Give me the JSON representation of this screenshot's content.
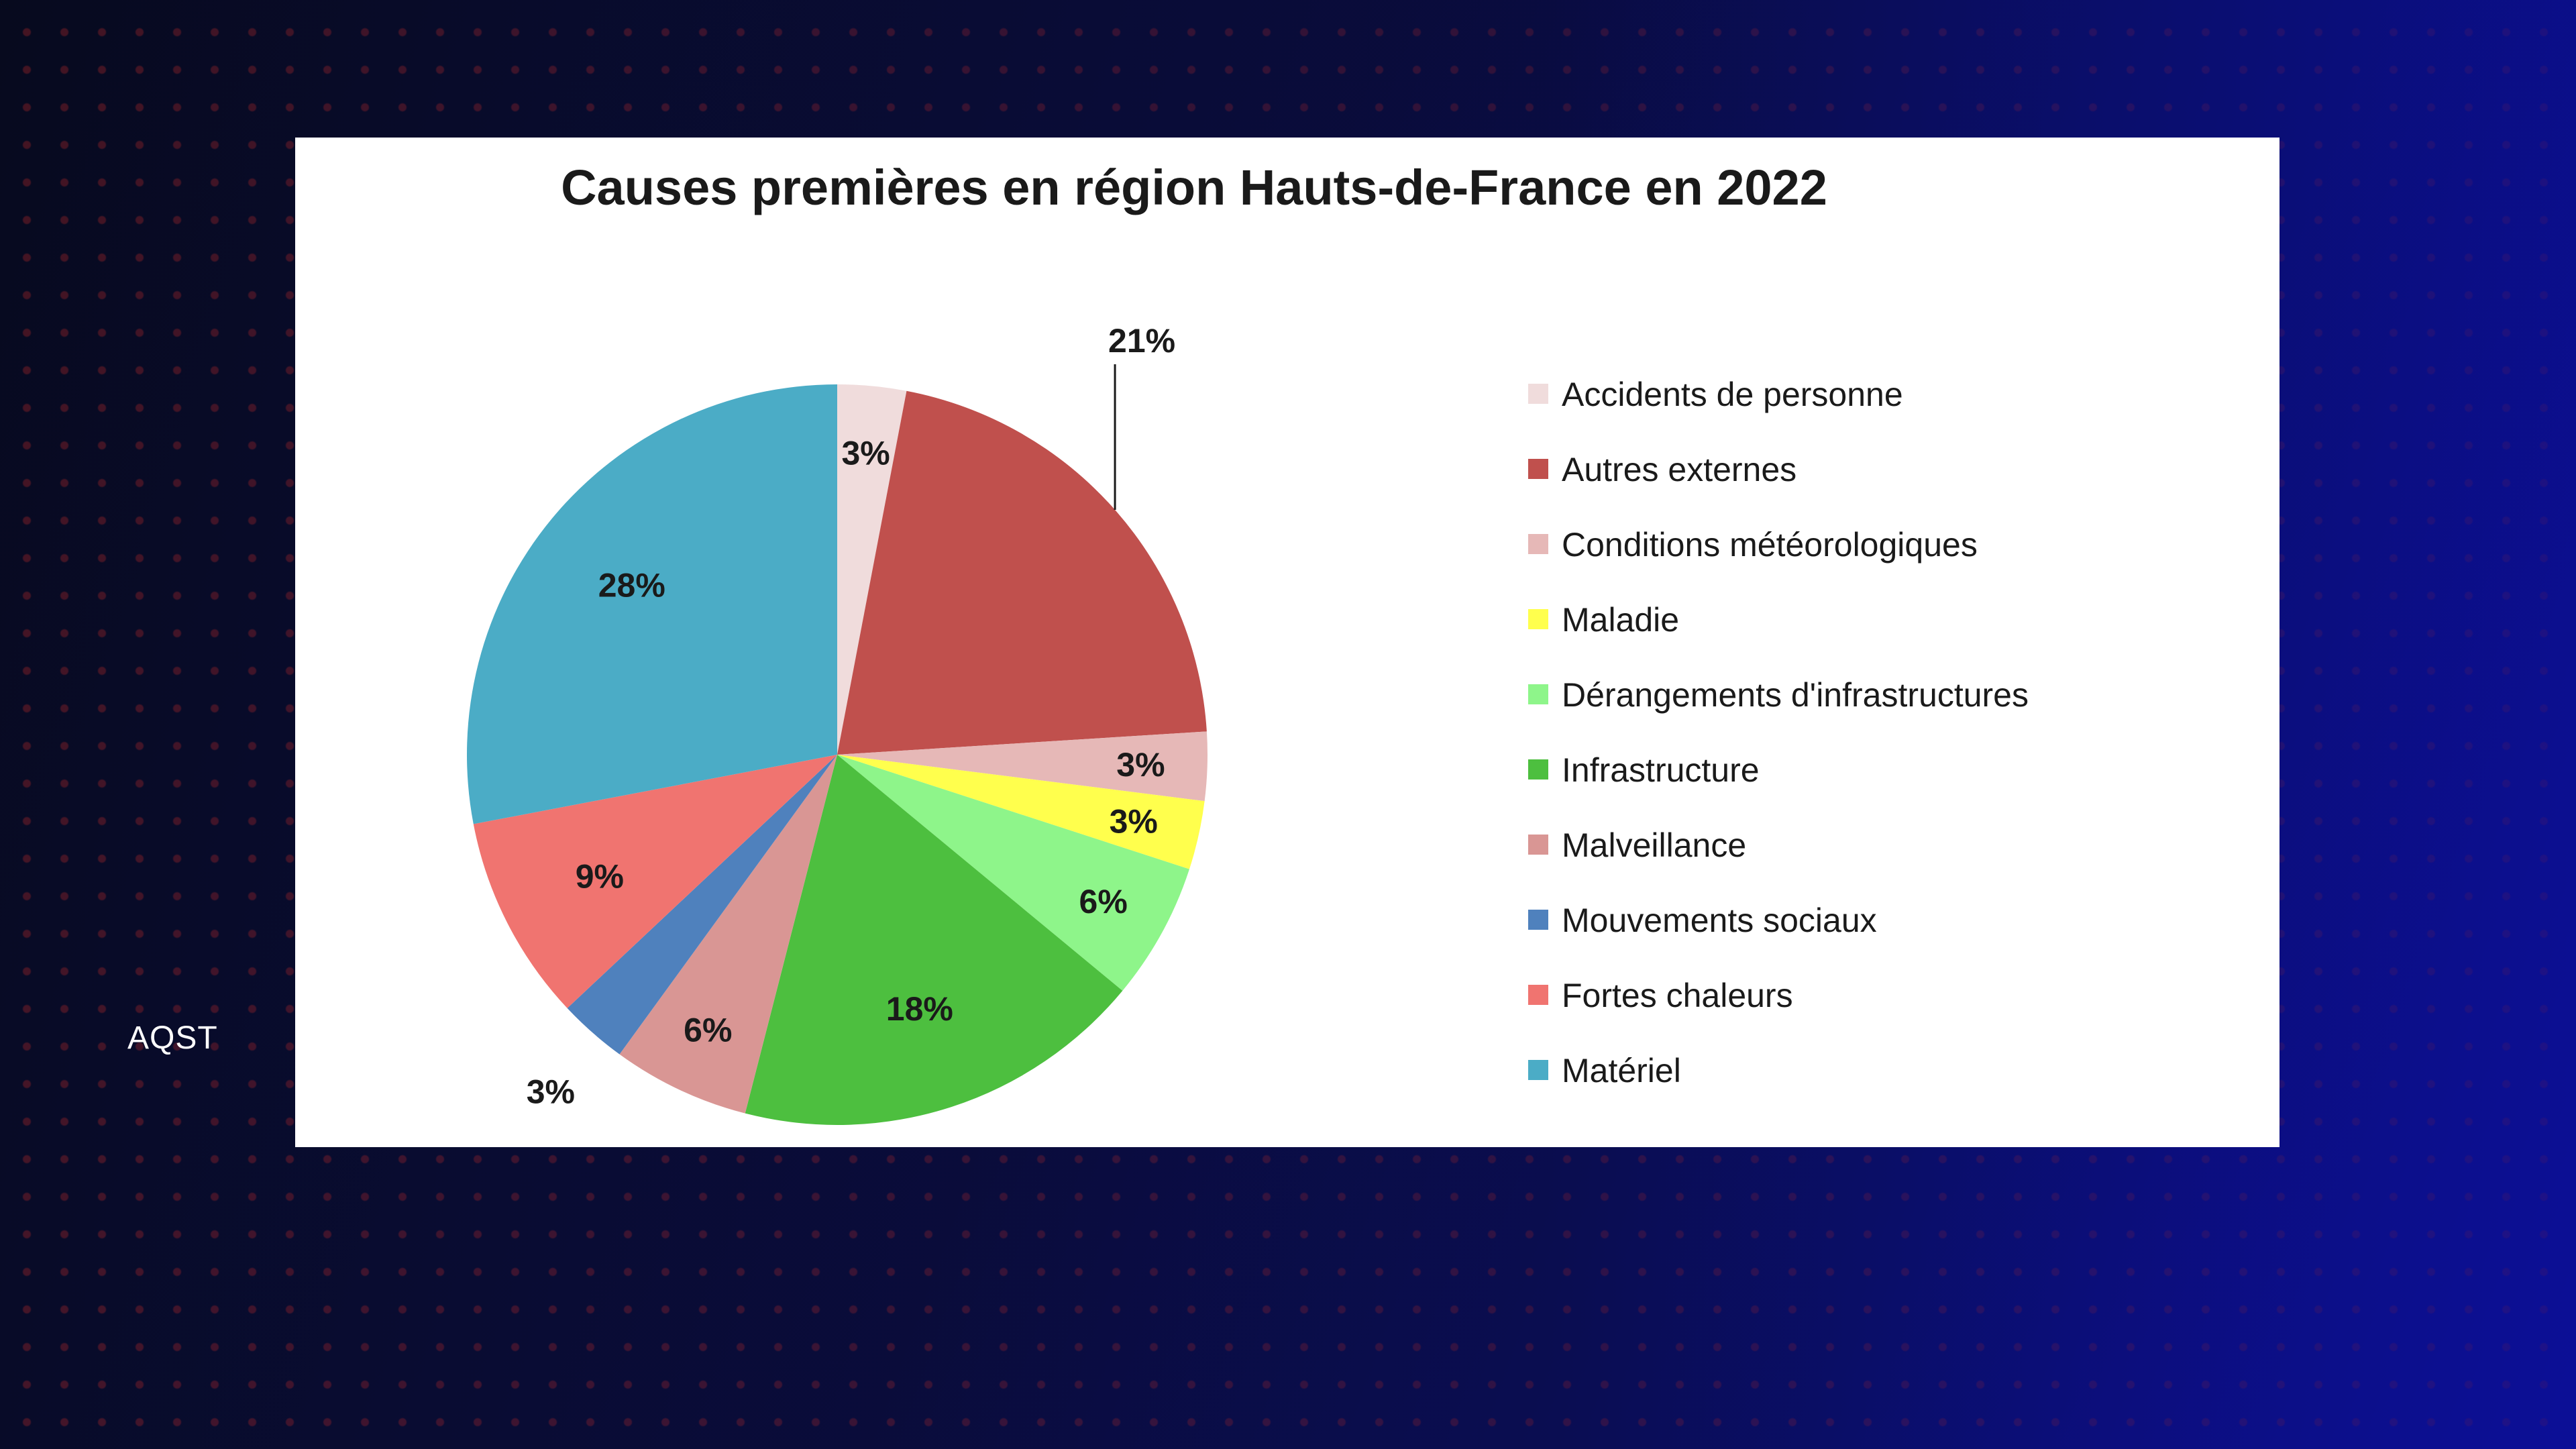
{
  "watermark": "AQST",
  "colors": {
    "accidents": "#f0dcdc",
    "autres": "#c0504d",
    "meteo": "#e6b8b7",
    "maladie": "#ffff4d",
    "derangements": "#8ef58a",
    "infrastructure": "#4dbf3f",
    "malveillance": "#d99694",
    "mouvements": "#4f81bd",
    "chaleurs": "#f07470",
    "materiel": "#4bacc6"
  },
  "chart_data": {
    "type": "pie",
    "title": "Causes premières en région Hauts-de-France en 2022",
    "legend_position": "right",
    "slices": [
      {
        "label": "Accidents de personne",
        "value": 3,
        "display": "3%",
        "color_key": "accidents"
      },
      {
        "label": "Autres externes",
        "value": 21,
        "display": "21%",
        "color_key": "autres"
      },
      {
        "label": "Conditions météorologiques",
        "value": 3,
        "display": "3%",
        "color_key": "meteo"
      },
      {
        "label": "Maladie",
        "value": 3,
        "display": "3%",
        "color_key": "maladie"
      },
      {
        "label": "Dérangements d'infrastructures",
        "value": 6,
        "display": "6%",
        "color_key": "derangements"
      },
      {
        "label": "Infrastructure",
        "value": 18,
        "display": "18%",
        "color_key": "infrastructure"
      },
      {
        "label": "Malveillance",
        "value": 6,
        "display": "6%",
        "color_key": "malveillance"
      },
      {
        "label": "Mouvements sociaux",
        "value": 3,
        "display": "3%",
        "color_key": "mouvements"
      },
      {
        "label": "Fortes chaleurs",
        "value": 9,
        "display": "9%",
        "color_key": "chaleurs"
      },
      {
        "label": "Matériel",
        "value": 28,
        "display": "28%",
        "color_key": "materiel"
      }
    ]
  }
}
